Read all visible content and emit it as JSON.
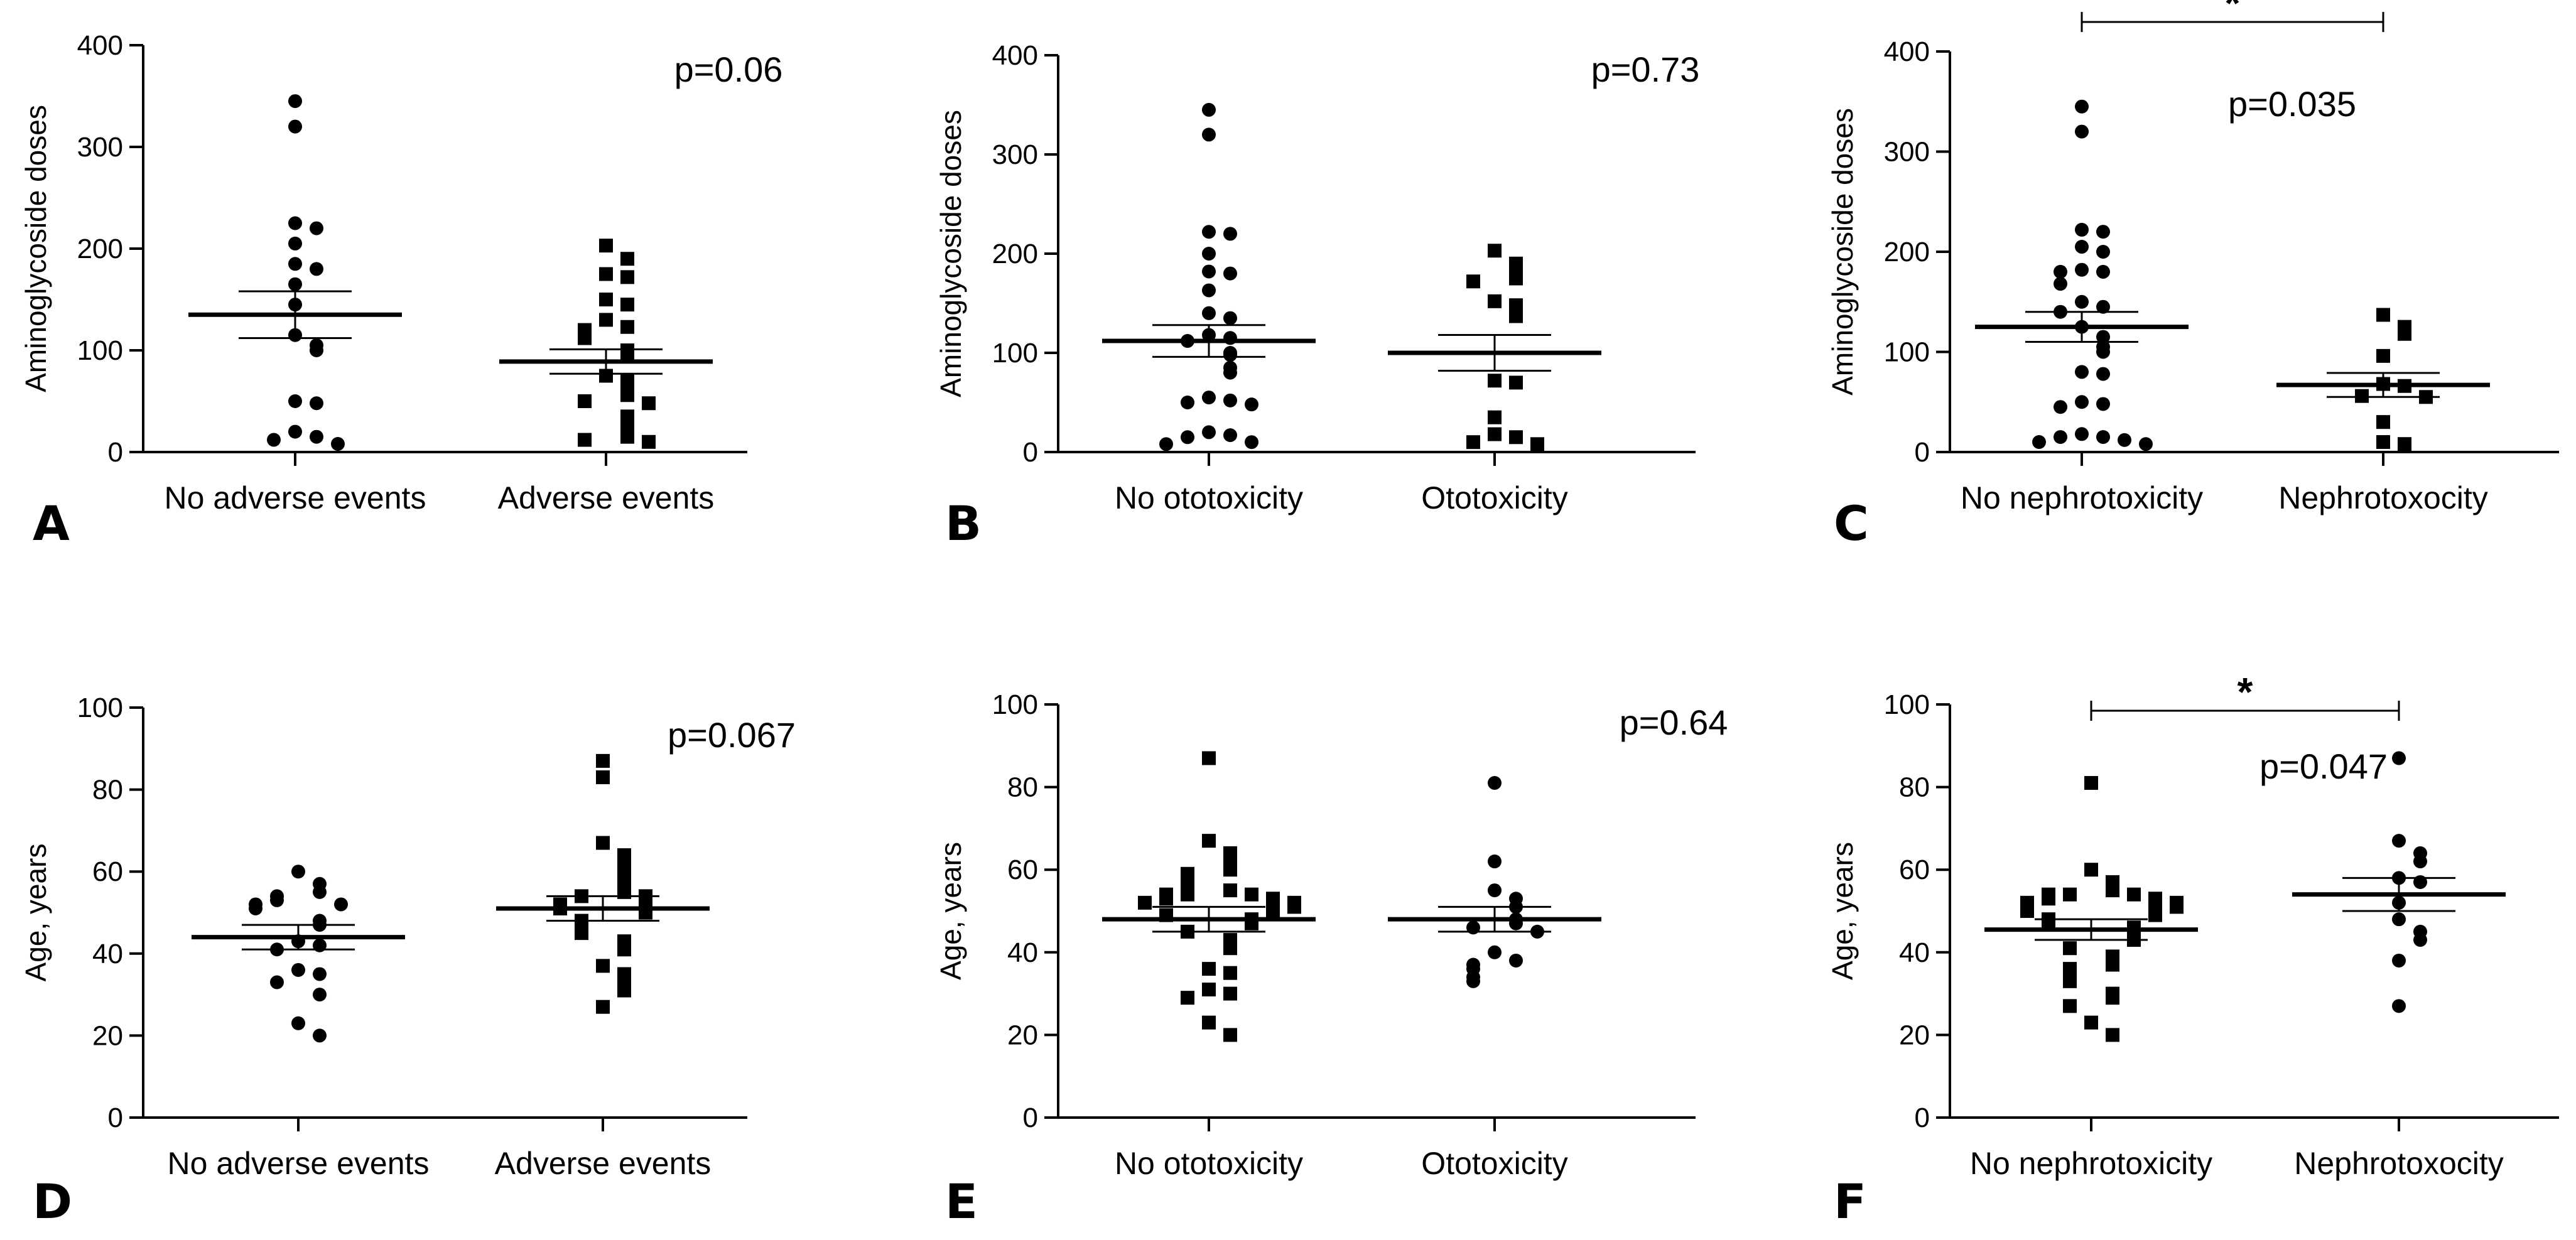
{
  "chart_data": [
    {
      "panel": "A",
      "type": "scatter",
      "ylabel": "Aminoglycoside doses",
      "ylim": [
        0,
        400
      ],
      "yticks": [
        0,
        100,
        200,
        300,
        400
      ],
      "categories": [
        "No adverse events",
        "Adverse events"
      ],
      "pvalue": "p=0.06",
      "significance": "",
      "groups": [
        {
          "name": "No adverse events",
          "marker": "circle",
          "mean": 135,
          "sem_low": 112,
          "sem_high": 158,
          "values": [
            345,
            320,
            225,
            220,
            205,
            185,
            180,
            165,
            145,
            115,
            105,
            100,
            50,
            48,
            20,
            15,
            12,
            8
          ]
        },
        {
          "name": "Adverse events",
          "marker": "square",
          "mean": 89,
          "sem_low": 77,
          "sem_high": 101,
          "values": [
            203,
            190,
            175,
            172,
            150,
            145,
            130,
            123,
            120,
            112,
            100,
            96,
            75,
            70,
            60,
            56,
            50,
            48,
            35,
            30,
            17,
            15,
            12,
            10
          ]
        }
      ]
    },
    {
      "panel": "B",
      "type": "scatter",
      "ylabel": "Aminoglycoside doses",
      "ylim": [
        0,
        400
      ],
      "yticks": [
        0,
        100,
        200,
        300,
        400
      ],
      "categories": [
        "No ototoxicity",
        "Ototoxicity"
      ],
      "pvalue": "p=0.73",
      "significance": "",
      "groups": [
        {
          "name": "No ototoxicity",
          "marker": "circle",
          "mean": 112,
          "sem_low": 96,
          "sem_high": 128,
          "values": [
            345,
            320,
            222,
            220,
            200,
            182,
            180,
            163,
            140,
            135,
            118,
            115,
            112,
            100,
            98,
            85,
            80,
            55,
            52,
            50,
            48,
            20,
            17,
            15,
            10,
            8
          ]
        },
        {
          "name": "Ototoxicity",
          "marker": "square",
          "mean": 100,
          "sem_low": 82,
          "sem_high": 118,
          "values": [
            203,
            190,
            182,
            175,
            172,
            152,
            148,
            137,
            72,
            70,
            35,
            18,
            15,
            10,
            8
          ]
        }
      ]
    },
    {
      "panel": "C",
      "type": "scatter",
      "ylabel": "Aminoglycoside doses",
      "ylim": [
        0,
        400
      ],
      "yticks": [
        0,
        100,
        200,
        300,
        400
      ],
      "categories": [
        "No nephrotoxicity",
        "Nephrotoxocity"
      ],
      "pvalue": "p=0.035",
      "significance": "*",
      "groups": [
        {
          "name": "No nephrotoxicity",
          "marker": "circle",
          "mean": 125,
          "sem_low": 110,
          "sem_high": 140,
          "values": [
            345,
            320,
            222,
            220,
            205,
            200,
            182,
            180,
            180,
            168,
            150,
            145,
            140,
            125,
            115,
            105,
            100,
            80,
            78,
            50,
            48,
            45,
            18,
            15,
            15,
            12,
            10,
            8
          ]
        },
        {
          "name": "Nephrotoxocity",
          "marker": "square",
          "mean": 67,
          "sem_low": 55,
          "sem_high": 79,
          "values": [
            137,
            125,
            118,
            96,
            68,
            66,
            56,
            55,
            30,
            10,
            8
          ]
        }
      ]
    },
    {
      "panel": "D",
      "type": "scatter",
      "ylabel": "Age, years",
      "ylim": [
        0,
        100
      ],
      "yticks": [
        0,
        20,
        40,
        60,
        80,
        100
      ],
      "categories": [
        "No adverse events",
        "Adverse events"
      ],
      "pvalue": "p=0.067",
      "significance": "",
      "groups": [
        {
          "name": "No adverse events",
          "marker": "circle",
          "mean": 44,
          "sem_low": 41,
          "sem_high": 47,
          "values": [
            60,
            57,
            55,
            54,
            53,
            52,
            52,
            51,
            48,
            47,
            43,
            42,
            41,
            36,
            35,
            33,
            30,
            23,
            20
          ]
        },
        {
          "name": "Adverse events",
          "marker": "square",
          "mean": 51,
          "sem_low": 48,
          "sem_high": 54,
          "values": [
            87,
            83,
            67,
            64,
            62,
            59,
            57,
            55,
            54,
            54,
            53,
            52,
            51,
            50,
            48,
            47,
            45,
            43,
            41,
            37,
            35,
            33,
            31,
            27
          ]
        }
      ]
    },
    {
      "panel": "E",
      "type": "scatter",
      "ylabel": "Age, years",
      "ylim": [
        0,
        100
      ],
      "yticks": [
        0,
        20,
        40,
        60,
        80,
        100
      ],
      "categories": [
        "No ototoxicity",
        "Ototoxicity"
      ],
      "pvalue": "p=0.64",
      "significance": "",
      "groups": [
        {
          "name": "No ototoxicity",
          "marker": "square",
          "mean": 48,
          "sem_low": 45,
          "sem_high": 51,
          "values": [
            87,
            67,
            64,
            62,
            60,
            59,
            57,
            55,
            54,
            54,
            54,
            53,
            53,
            52,
            52,
            51,
            50,
            49,
            48,
            47,
            45,
            43,
            41,
            36,
            35,
            31,
            30,
            29,
            23,
            20
          ]
        },
        {
          "name": "Ototoxicity",
          "marker": "circle",
          "mean": 48,
          "sem_low": 45,
          "sem_high": 51,
          "values": [
            81,
            62,
            55,
            53,
            51,
            48,
            47,
            46,
            45,
            40,
            38,
            37,
            36,
            34,
            33
          ]
        }
      ]
    },
    {
      "panel": "F",
      "type": "scatter",
      "ylabel": "Age, years",
      "ylim": [
        0,
        100
      ],
      "yticks": [
        0,
        20,
        40,
        60,
        80,
        100
      ],
      "categories": [
        "No nephrotoxicity",
        "Nephrotoxocity"
      ],
      "pvalue": "p=0.047",
      "significance": "*",
      "groups": [
        {
          "name": "No nephrotoxicity",
          "marker": "square",
          "mean": 45.5,
          "sem_low": 43,
          "sem_high": 48,
          "values": [
            81,
            60,
            57,
            55,
            54,
            54,
            54,
            53,
            53,
            52,
            52,
            51,
            50,
            50,
            49,
            48,
            47,
            46,
            45,
            44,
            43,
            41,
            39,
            37,
            36,
            35,
            33,
            30,
            29,
            27,
            23,
            20
          ]
        },
        {
          "name": "Nephrotoxocity",
          "marker": "circle",
          "mean": 54,
          "sem_low": 50,
          "sem_high": 58,
          "values": [
            87,
            67,
            64,
            62,
            58,
            57,
            52,
            48,
            45,
            43,
            38,
            27
          ]
        }
      ]
    }
  ]
}
